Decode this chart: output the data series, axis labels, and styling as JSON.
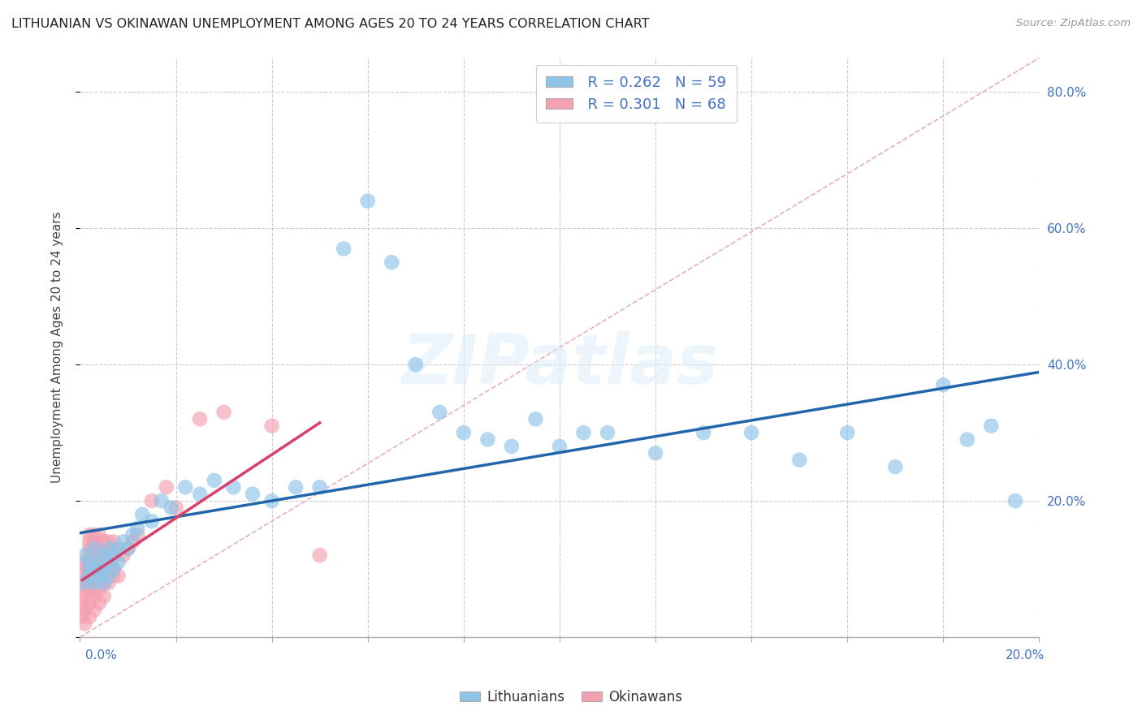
{
  "title": "LITHUANIAN VS OKINAWAN UNEMPLOYMENT AMONG AGES 20 TO 24 YEARS CORRELATION CHART",
  "source": "Source: ZipAtlas.com",
  "ylabel": "Unemployment Among Ages 20 to 24 years",
  "xmin": 0.0,
  "xmax": 0.2,
  "ymin": 0.0,
  "ymax": 0.85,
  "background_color": "#ffffff",
  "watermark": "ZIPatlas",
  "blue_color": "#8ec4e8",
  "pink_color": "#f4a0b0",
  "blue_line_color": "#2166ac",
  "pink_line_color": "#d6406a",
  "diagonal_color": "#e8b0b8",
  "grid_color": "#cccccc",
  "lit_x": [
    0.001,
    0.001,
    0.002,
    0.002,
    0.002,
    0.003,
    0.003,
    0.003,
    0.004,
    0.004,
    0.004,
    0.005,
    0.005,
    0.005,
    0.006,
    0.006,
    0.006,
    0.007,
    0.007,
    0.008,
    0.008,
    0.009,
    0.01,
    0.011,
    0.012,
    0.013,
    0.015,
    0.017,
    0.019,
    0.022,
    0.025,
    0.028,
    0.032,
    0.036,
    0.04,
    0.045,
    0.05,
    0.055,
    0.06,
    0.065,
    0.07,
    0.075,
    0.08,
    0.085,
    0.09,
    0.095,
    0.1,
    0.105,
    0.11,
    0.12,
    0.13,
    0.14,
    0.15,
    0.16,
    0.17,
    0.18,
    0.185,
    0.19,
    0.195
  ],
  "lit_y": [
    0.12,
    0.08,
    0.1,
    0.09,
    0.11,
    0.08,
    0.1,
    0.13,
    0.09,
    0.11,
    0.1,
    0.08,
    0.12,
    0.1,
    0.09,
    0.13,
    0.11,
    0.1,
    0.12,
    0.11,
    0.13,
    0.14,
    0.13,
    0.15,
    0.16,
    0.18,
    0.17,
    0.2,
    0.19,
    0.22,
    0.21,
    0.23,
    0.22,
    0.21,
    0.2,
    0.22,
    0.22,
    0.57,
    0.64,
    0.55,
    0.4,
    0.33,
    0.3,
    0.29,
    0.28,
    0.32,
    0.28,
    0.3,
    0.3,
    0.27,
    0.3,
    0.3,
    0.26,
    0.3,
    0.25,
    0.37,
    0.29,
    0.31,
    0.2
  ],
  "oki_x": [
    0.0005,
    0.0005,
    0.001,
    0.001,
    0.001,
    0.001,
    0.001,
    0.001,
    0.001,
    0.001,
    0.002,
    0.002,
    0.002,
    0.002,
    0.002,
    0.002,
    0.002,
    0.002,
    0.002,
    0.002,
    0.002,
    0.003,
    0.003,
    0.003,
    0.003,
    0.003,
    0.003,
    0.003,
    0.003,
    0.003,
    0.003,
    0.004,
    0.004,
    0.004,
    0.004,
    0.004,
    0.004,
    0.004,
    0.004,
    0.005,
    0.005,
    0.005,
    0.005,
    0.005,
    0.005,
    0.005,
    0.006,
    0.006,
    0.006,
    0.006,
    0.006,
    0.007,
    0.007,
    0.007,
    0.007,
    0.008,
    0.008,
    0.009,
    0.01,
    0.011,
    0.012,
    0.015,
    0.018,
    0.02,
    0.025,
    0.03,
    0.04,
    0.05
  ],
  "oki_y": [
    0.03,
    0.05,
    0.02,
    0.04,
    0.06,
    0.07,
    0.08,
    0.09,
    0.1,
    0.11,
    0.03,
    0.05,
    0.07,
    0.08,
    0.09,
    0.1,
    0.11,
    0.12,
    0.13,
    0.14,
    0.15,
    0.04,
    0.06,
    0.07,
    0.08,
    0.09,
    0.1,
    0.11,
    0.13,
    0.14,
    0.15,
    0.05,
    0.07,
    0.08,
    0.09,
    0.1,
    0.11,
    0.13,
    0.15,
    0.06,
    0.08,
    0.09,
    0.1,
    0.11,
    0.12,
    0.14,
    0.08,
    0.09,
    0.1,
    0.12,
    0.14,
    0.09,
    0.1,
    0.12,
    0.14,
    0.09,
    0.13,
    0.12,
    0.13,
    0.14,
    0.15,
    0.2,
    0.22,
    0.19,
    0.32,
    0.33,
    0.31,
    0.12
  ]
}
